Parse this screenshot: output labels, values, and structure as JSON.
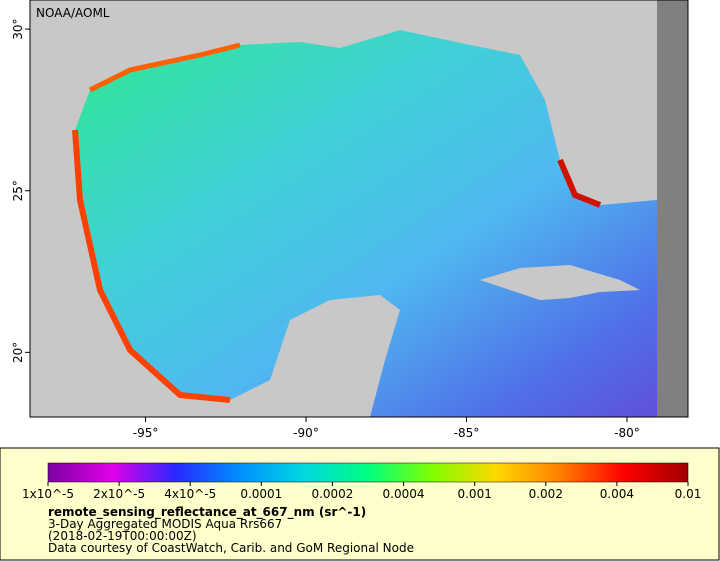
{
  "map": {
    "credit": "NOAA/AOML",
    "xlim": [
      -98.6,
      -78.1
    ],
    "ylim": [
      18.0,
      30.9
    ],
    "xticks": [
      {
        "value": -95,
        "label": "-95°"
      },
      {
        "value": -90,
        "label": "-90°"
      },
      {
        "value": -85,
        "label": "-85°"
      },
      {
        "value": -80,
        "label": "-80°"
      }
    ],
    "yticks": [
      {
        "value": 20,
        "label": "20°"
      },
      {
        "value": 25,
        "label": "25°"
      },
      {
        "value": 30,
        "label": "30°"
      }
    ]
  },
  "colorbar": {
    "scale": "log",
    "colors": [
      "#7a00a0",
      "#e000e8",
      "#2828ff",
      "#0090ff",
      "#00d8e0",
      "#00ff80",
      "#80ff00",
      "#ffd800",
      "#ff8000",
      "#ff0000",
      "#a00000"
    ],
    "ticks": [
      {
        "value": 1e-05,
        "label": "1x10^-5"
      },
      {
        "value": 2e-05,
        "label": "2x10^-5"
      },
      {
        "value": 4e-05,
        "label": "4x10^-5"
      },
      {
        "value": 0.0001,
        "label": "0.0001"
      },
      {
        "value": 0.0002,
        "label": "0.0002"
      },
      {
        "value": 0.0004,
        "label": "0.0004"
      },
      {
        "value": 0.001,
        "label": "0.001"
      },
      {
        "value": 0.002,
        "label": "0.002"
      },
      {
        "value": 0.004,
        "label": "0.004"
      },
      {
        "value": 0.01,
        "label": "0.01"
      }
    ]
  },
  "legend": {
    "variable": "remote_sensing_reflectance_at_667_nm (sr^-1)",
    "dataset": "3-Day Aggregated MODIS Aqua Rrs667",
    "time": "(2018-02-19T00:00:00Z)",
    "courtesy": "Data courtesy of CoastWatch, Carib. and GoM Regional Node"
  }
}
